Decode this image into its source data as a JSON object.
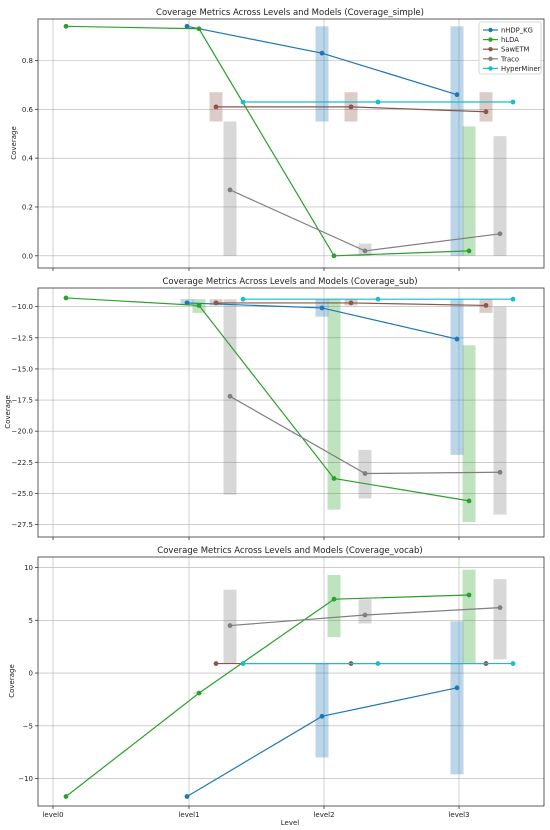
{
  "figure": {
    "xlabel": "Level",
    "xticks": [
      "level0",
      "level1",
      "level2",
      "level3"
    ]
  },
  "legend": {
    "placement": "top-right",
    "entries": [
      {
        "name": "nHDP_KG",
        "color": "#1f77b4"
      },
      {
        "name": "hLDA",
        "color": "#2ca02c"
      },
      {
        "name": "SawETM",
        "color": "#8c564b"
      },
      {
        "name": "Traco",
        "color": "#7f7f7f"
      },
      {
        "name": "HyperMiner",
        "color": "#17becf"
      }
    ]
  },
  "chart_data": [
    {
      "type": "line",
      "title": "Coverage Metrics Across Levels and Models (Coverage_simple)",
      "ylabel": "Coverage",
      "ylim": [
        -0.05,
        0.97
      ],
      "yticks": [
        0.0,
        0.2,
        0.4,
        0.6,
        0.8
      ],
      "ytick_labels": [
        "0.0",
        "0.2",
        "0.4",
        "0.6",
        "0.8"
      ],
      "grid": true,
      "series": [
        {
          "name": "nHDP_KG",
          "color": "#1f77b4",
          "x": [
            1,
            2,
            3
          ],
          "y": [
            0.94,
            0.83,
            0.66
          ],
          "bands": [
            null,
            [
              0.55,
              0.94
            ],
            [
              0.0,
              0.94
            ]
          ]
        },
        {
          "name": "hLDA",
          "color": "#2ca02c",
          "x": [
            0,
            1,
            2,
            3
          ],
          "y": [
            0.94,
            0.93,
            0.0,
            0.02
          ],
          "bands": [
            null,
            null,
            null,
            [
              0.0,
              0.53
            ]
          ]
        },
        {
          "name": "SawETM",
          "color": "#8c564b",
          "x": [
            1,
            2,
            3
          ],
          "y": [
            0.61,
            0.61,
            0.59
          ],
          "bands": [
            [
              0.55,
              0.67
            ],
            [
              0.55,
              0.67
            ],
            [
              0.55,
              0.67
            ]
          ]
        },
        {
          "name": "Traco",
          "color": "#7f7f7f",
          "x": [
            1,
            2,
            3
          ],
          "y": [
            0.27,
            0.02,
            0.09
          ],
          "bands": [
            [
              0.0,
              0.55
            ],
            [
              0.0,
              0.05
            ],
            [
              0.0,
              0.49
            ]
          ]
        },
        {
          "name": "HyperMiner",
          "color": "#17becf",
          "x": [
            1,
            2,
            3
          ],
          "y": [
            0.63,
            0.63,
            0.63
          ],
          "bands": [
            null,
            null,
            null
          ]
        }
      ]
    },
    {
      "type": "line",
      "title": "Coverage Metrics Across Levels and Models (Coverage_sub)",
      "ylabel": "Coverage",
      "ylim": [
        -28.5,
        -8.5
      ],
      "yticks": [
        -10.0,
        -12.5,
        -15.0,
        -17.5,
        -20.0,
        -22.5,
        -25.0,
        -27.5
      ],
      "ytick_labels": [
        "−10.0",
        "−12.5",
        "−15.0",
        "−17.5",
        "−20.0",
        "−22.5",
        "−25.0",
        "−27.5"
      ],
      "grid": true,
      "series": [
        {
          "name": "nHDP_KG",
          "color": "#1f77b4",
          "x": [
            1,
            2,
            3
          ],
          "y": [
            -9.7,
            -10.1,
            -12.6
          ],
          "bands": [
            [
              -9.9,
              -9.4
            ],
            [
              -10.8,
              -9.4
            ],
            [
              -21.9,
              -9.4
            ]
          ]
        },
        {
          "name": "hLDA",
          "color": "#2ca02c",
          "x": [
            0,
            1,
            2,
            3
          ],
          "y": [
            -9.3,
            -9.9,
            -23.8,
            -25.6
          ],
          "bands": [
            null,
            [
              -10.5,
              -9.4
            ],
            [
              -26.3,
              -9.4
            ],
            [
              -27.3,
              -13.1
            ]
          ]
        },
        {
          "name": "SawETM",
          "color": "#8c564b",
          "x": [
            1,
            2,
            3
          ],
          "y": [
            -9.7,
            -9.7,
            -9.9
          ],
          "bands": [
            [
              -9.9,
              -9.4
            ],
            [
              -9.9,
              -9.4
            ],
            [
              -10.5,
              -9.4
            ]
          ]
        },
        {
          "name": "Traco",
          "color": "#7f7f7f",
          "x": [
            1,
            2,
            3
          ],
          "y": [
            -17.2,
            -23.4,
            -23.3
          ],
          "bands": [
            [
              -25.1,
              -9.4
            ],
            [
              -25.4,
              -21.5
            ],
            [
              -26.7,
              -10.0
            ]
          ]
        },
        {
          "name": "HyperMiner",
          "color": "#17becf",
          "x": [
            1,
            2,
            3
          ],
          "y": [
            -9.4,
            -9.4,
            -9.4
          ],
          "bands": [
            null,
            null,
            null
          ]
        }
      ]
    },
    {
      "type": "line",
      "title": "Coverage Metrics Across Levels and Models (Coverage_vocab)",
      "ylabel": "Coverage",
      "ylim": [
        -12.6,
        11.0
      ],
      "yticks": [
        10,
        5,
        0,
        -5,
        -10
      ],
      "ytick_labels": [
        "10",
        "5",
        "0",
        "−5",
        "−10"
      ],
      "grid": true,
      "series": [
        {
          "name": "nHDP_KG",
          "color": "#1f77b4",
          "x": [
            1,
            2,
            3
          ],
          "y": [
            -11.7,
            -4.1,
            -1.4
          ],
          "bands": [
            null,
            [
              -8.0,
              0.9
            ],
            [
              -9.6,
              4.9
            ]
          ]
        },
        {
          "name": "hLDA",
          "color": "#2ca02c",
          "x": [
            0,
            1,
            2,
            3
          ],
          "y": [
            -11.7,
            -1.9,
            7.0,
            7.4
          ],
          "bands": [
            null,
            [
              -1.9,
              -1.9
            ],
            [
              3.4,
              9.3
            ],
            [
              0.9,
              9.8
            ]
          ]
        },
        {
          "name": "SawETM",
          "color": "#8c564b",
          "x": [
            1,
            2,
            3
          ],
          "y": [
            0.9,
            0.9,
            0.9
          ],
          "bands": [
            null,
            null,
            null
          ]
        },
        {
          "name": "Traco",
          "color": "#7f7f7f",
          "x": [
            1,
            2,
            3
          ],
          "y": [
            4.5,
            5.5,
            6.2
          ],
          "bands": [
            [
              0.9,
              7.9
            ],
            [
              4.7,
              7.0
            ],
            [
              1.3,
              8.9
            ]
          ]
        },
        {
          "name": "HyperMiner",
          "color": "#17becf",
          "x": [
            1,
            2,
            3
          ],
          "y": [
            0.9,
            0.9,
            0.9
          ],
          "bands": [
            null,
            null,
            null
          ]
        }
      ]
    }
  ]
}
